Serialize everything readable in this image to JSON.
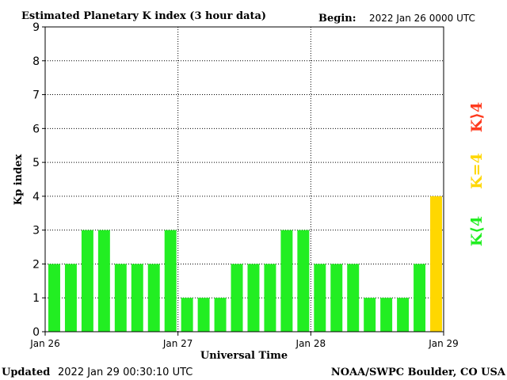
{
  "header": {
    "title": "Estimated Planetary K index (3 hour data)",
    "begin_label": "Begin:",
    "begin_value": "2022 Jan 26 0000 UTC"
  },
  "footer": {
    "updated_label": "Updated",
    "updated_value": "2022 Jan 29 00:30:10 UTC",
    "credit": "NOAA/SWPC Boulder, CO USA"
  },
  "legend": {
    "k_below_4": {
      "label": "K⟨4",
      "color": "#22ee22"
    },
    "k_equal_4": {
      "label": "K=4",
      "color": "#ffd700"
    },
    "k_above_4": {
      "label": "K⟩4",
      "color": "#ff3b1f"
    }
  },
  "chart_data": {
    "type": "bar",
    "title": "Estimated Planetary K index (3 hour data)",
    "xlabel": "Universal Time",
    "ylabel": "Kp index",
    "ylim": [
      0,
      9
    ],
    "yticks": [
      "0",
      "1",
      "2",
      "3",
      "4",
      "5",
      "6",
      "7",
      "8",
      "9"
    ],
    "xtick_labels": [
      "Jan 26",
      "Jan 27",
      "Jan 28",
      "Jan 29"
    ],
    "grid": true,
    "values": [
      2,
      2,
      3,
      3,
      2,
      2,
      2,
      3,
      1,
      1,
      1,
      2,
      2,
      2,
      3,
      3,
      2,
      2,
      2,
      1,
      1,
      1,
      2,
      4
    ],
    "colors": {
      "below_4": "#22ee22",
      "equal_4": "#ffd700",
      "above_4": "#ff3b1f"
    }
  }
}
